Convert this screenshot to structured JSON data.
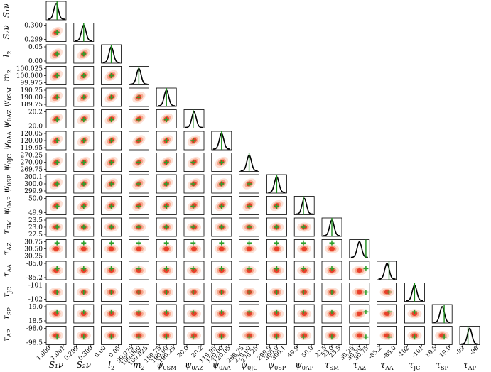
{
  "chart_data": {
    "type": "scatter",
    "title": "",
    "grid": false,
    "legend": "none",
    "colors": {
      "kde_outer": "#fde1d6",
      "kde_mid": "#f7a88e",
      "kde_core": "#e8402a",
      "truth_marker": "#2ca02c",
      "truth_line": "#1a8a1a",
      "posterior_curve": "#000000"
    },
    "parameters": [
      {
        "label": "S₁ν",
        "sub": "",
        "ticks": [
          "1.000",
          "1.001"
        ],
        "truth_pos": 0.55
      },
      {
        "label": "S₂ν",
        "sub": "",
        "ticks": [
          "0.299",
          "0.300"
        ],
        "truth_pos": 0.5
      },
      {
        "label": "l",
        "sub": "2",
        "ticks": [
          "0.00",
          "0.05"
        ],
        "truth_pos": 0.5
      },
      {
        "label": "m",
        "sub": "2",
        "ticks": [
          "99.975",
          "100.000",
          "100.025"
        ],
        "truth_pos": 0.5
      },
      {
        "label": "ψ",
        "sub": "0SM",
        "ticks": [
          "189.75",
          "190.00",
          "190.25"
        ],
        "truth_pos": 0.5
      },
      {
        "label": "ψ",
        "sub": "0AZ",
        "ticks": [
          "20.0",
          "20.2"
        ],
        "truth_pos": 0.45
      },
      {
        "label": "ψ",
        "sub": "0AA",
        "ticks": [
          "119.95",
          "120.00",
          "120.05"
        ],
        "truth_pos": 0.5
      },
      {
        "label": "ψ",
        "sub": "0JC",
        "ticks": [
          "269.75",
          "270.00",
          "270.25"
        ],
        "truth_pos": 0.5
      },
      {
        "label": "ψ",
        "sub": "0SP",
        "ticks": [
          "299.9",
          "300.0",
          "300.1"
        ],
        "truth_pos": 0.5
      },
      {
        "label": "ψ",
        "sub": "0AP",
        "ticks": [
          "49.9",
          "50.0"
        ],
        "truth_pos": 0.45
      },
      {
        "label": "τ",
        "sub": "SM",
        "ticks": [
          "22.5",
          "23.0",
          "23.5"
        ],
        "truth_pos": 0.5
      },
      {
        "label": "τ",
        "sub": "AZ",
        "ticks": [
          "30.25",
          "30.50",
          "30.75"
        ],
        "truth_pos": 0.88
      },
      {
        "label": "τ",
        "sub": "AA",
        "ticks": [
          "-85.2",
          "-85.0"
        ],
        "truth_pos": 0.62
      },
      {
        "label": "τ",
        "sub": "JC",
        "ticks": [
          "-102",
          "-101"
        ],
        "truth_pos": 0.5
      },
      {
        "label": "τ",
        "sub": "SP",
        "ticks": [
          "18.5",
          "19.0"
        ],
        "truth_pos": 0.62
      },
      {
        "label": "τ",
        "sub": "AP",
        "ticks": [
          "-99",
          "-98"
        ],
        "truth_pos": 0.4
      }
    ],
    "y_ticks": [
      [],
      [
        "0.299",
        "0.300"
      ],
      [
        "0.00",
        "0.05"
      ],
      [
        "99.975",
        "100.000",
        "100.025"
      ],
      [
        "189.75",
        "190.00",
        "190.25"
      ],
      [
        "20.0",
        "20.2"
      ],
      [
        "119.95",
        "120.00",
        "120.05"
      ],
      [
        "269.75",
        "270.00",
        "270.25"
      ],
      [
        "299.9",
        "300.0",
        "300.1"
      ],
      [
        "49.9",
        "50.0"
      ],
      [
        "22.5",
        "23.0",
        "23.5"
      ],
      [
        "30.25",
        "30.50",
        "30.75"
      ],
      [
        "-85.2",
        "-85.0"
      ],
      [
        "-102",
        "-101"
      ],
      [
        "18.5",
        "19.0"
      ],
      [
        "-98.5",
        "-98.0"
      ]
    ]
  }
}
